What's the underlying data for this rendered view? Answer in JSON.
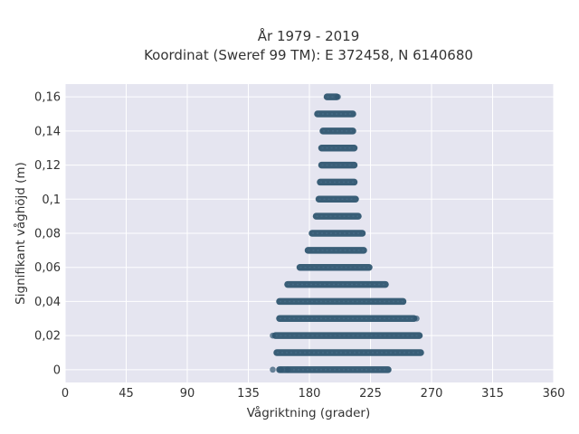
{
  "chart_data": {
    "type": "scatter",
    "title": "År 1979 - 2019",
    "subtitle": "Koordinat (Sweref 99 TM): E 372458, N 6140680",
    "xlabel": "Vågriktning (grader)",
    "ylabel": "Signifikant våghöjd (m)",
    "xlim": [
      0,
      360
    ],
    "ylim": [
      -0.0075,
      0.1675
    ],
    "x_ticks": [
      0,
      45,
      90,
      135,
      180,
      225,
      270,
      315,
      360
    ],
    "x_tick_labels": [
      "0",
      "45",
      "90",
      "135",
      "180",
      "225",
      "270",
      "315",
      "360"
    ],
    "y_ticks": [
      0,
      0.02,
      0.04,
      0.06,
      0.08,
      0.1,
      0.12,
      0.14,
      0.16
    ],
    "y_tick_labels": [
      "0",
      "0,02",
      "0,04",
      "0,06",
      "0,08",
      "0,1",
      "0,12",
      "0,14",
      "0,16"
    ],
    "grid": true,
    "marker_color": "#2f5670",
    "background_color": "#e5e5f0",
    "bands": [
      {
        "y": 0,
        "x_min": 158,
        "x_max": 238
      },
      {
        "y": 0.01,
        "x_min": 156,
        "x_max": 262
      },
      {
        "y": 0.02,
        "x_min": 155,
        "x_max": 261
      },
      {
        "y": 0.03,
        "x_min": 158,
        "x_max": 257
      },
      {
        "y": 0.04,
        "x_min": 158,
        "x_max": 249
      },
      {
        "y": 0.05,
        "x_min": 164,
        "x_max": 236
      },
      {
        "y": 0.06,
        "x_min": 173,
        "x_max": 224
      },
      {
        "y": 0.07,
        "x_min": 179,
        "x_max": 220
      },
      {
        "y": 0.08,
        "x_min": 182,
        "x_max": 219
      },
      {
        "y": 0.09,
        "x_min": 185,
        "x_max": 216
      },
      {
        "y": 0.1,
        "x_min": 187,
        "x_max": 214
      },
      {
        "y": 0.11,
        "x_min": 188,
        "x_max": 213
      },
      {
        "y": 0.12,
        "x_min": 189,
        "x_max": 213
      },
      {
        "y": 0.13,
        "x_min": 189,
        "x_max": 213
      },
      {
        "y": 0.14,
        "x_min": 190,
        "x_max": 212
      },
      {
        "y": 0.15,
        "x_min": 186,
        "x_max": 212
      },
      {
        "y": 0.16,
        "x_min": 193,
        "x_max": 200
      }
    ],
    "outliers": [
      {
        "x": 153,
        "y": 0
      },
      {
        "x": 159,
        "y": 0
      },
      {
        "x": 164,
        "y": 0
      },
      {
        "x": 153,
        "y": 0.02
      },
      {
        "x": 259,
        "y": 0.03
      },
      {
        "x": 201,
        "y": 0.16
      }
    ]
  }
}
